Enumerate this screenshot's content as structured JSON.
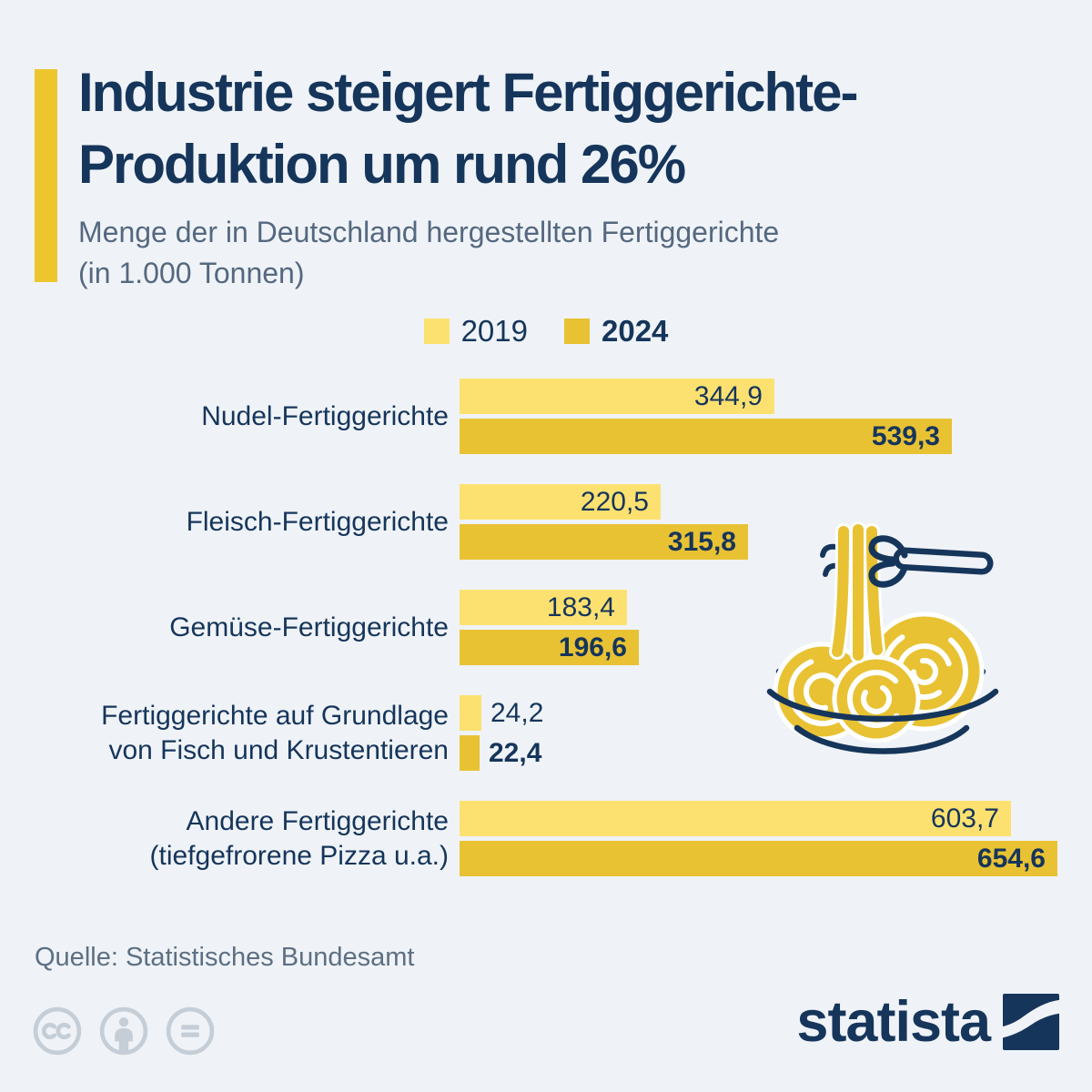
{
  "colors": {
    "background": "#EFF3F7",
    "navy": "#16355B",
    "subtitle_gray": "#556880",
    "source_gray": "#5D6F83",
    "accent_gold": "#EDC62F",
    "series_2019_yellow": "#FCE170",
    "series_2024_gold": "#E8C233",
    "license_gray": "#C5CED7"
  },
  "header": {
    "title_line1": "Industrie steigert Fertiggerichte-",
    "title_line2": "Produktion um rund 26%",
    "subtitle_line1": "Menge der in Deutschland hergestellten Fertiggerichte",
    "subtitle_line2": "(in 1.000 Tonnen)"
  },
  "chart_data": {
    "type": "bar",
    "orientation": "horizontal",
    "unit": "1.000 Tonnen",
    "xlim": [
      0,
      660
    ],
    "grid": false,
    "legend_position": "top-center",
    "categories": [
      "Nudel-Fertiggerichte",
      "Fleisch-Fertiggerichte",
      "Gemüse-Fertiggerichte",
      "Fertiggerichte auf Grundlage von Fisch und Krustentieren",
      "Andere Fertiggerichte (tiefgefrorene Pizza u.a.)"
    ],
    "category_lines": [
      [
        "Nudel-Fertiggerichte"
      ],
      [
        "Fleisch-Fertiggerichte"
      ],
      [
        "Gemüse-Fertiggerichte"
      ],
      [
        "Fertiggerichte auf Grundlage",
        "von Fisch und Krustentieren"
      ],
      [
        "Andere Fertiggerichte",
        "(tiefgefrorene Pizza u.a.)"
      ]
    ],
    "series": [
      {
        "name": "2019",
        "color": "#FCE170",
        "values": [
          344.9,
          220.5,
          183.4,
          24.2,
          603.7
        ],
        "labels": [
          "344,9",
          "220,5",
          "183,4",
          "24,2",
          "603,7"
        ],
        "bold_value_labels": false
      },
      {
        "name": "2024",
        "color": "#E8C233",
        "values": [
          539.3,
          315.8,
          196.6,
          22.4,
          654.6
        ],
        "labels": [
          "539,3",
          "315,8",
          "196,6",
          "22,4",
          "654,6"
        ],
        "bold_value_labels": true
      }
    ]
  },
  "decoration": {
    "icon": "noodles-on-fork-icon"
  },
  "footer": {
    "source": "Quelle: Statistisches Bundesamt",
    "license_icons": [
      "cc-icon",
      "attribution-icon",
      "equal-icon"
    ],
    "brand": "statista",
    "brand_mark": "statista-logo-mark"
  }
}
